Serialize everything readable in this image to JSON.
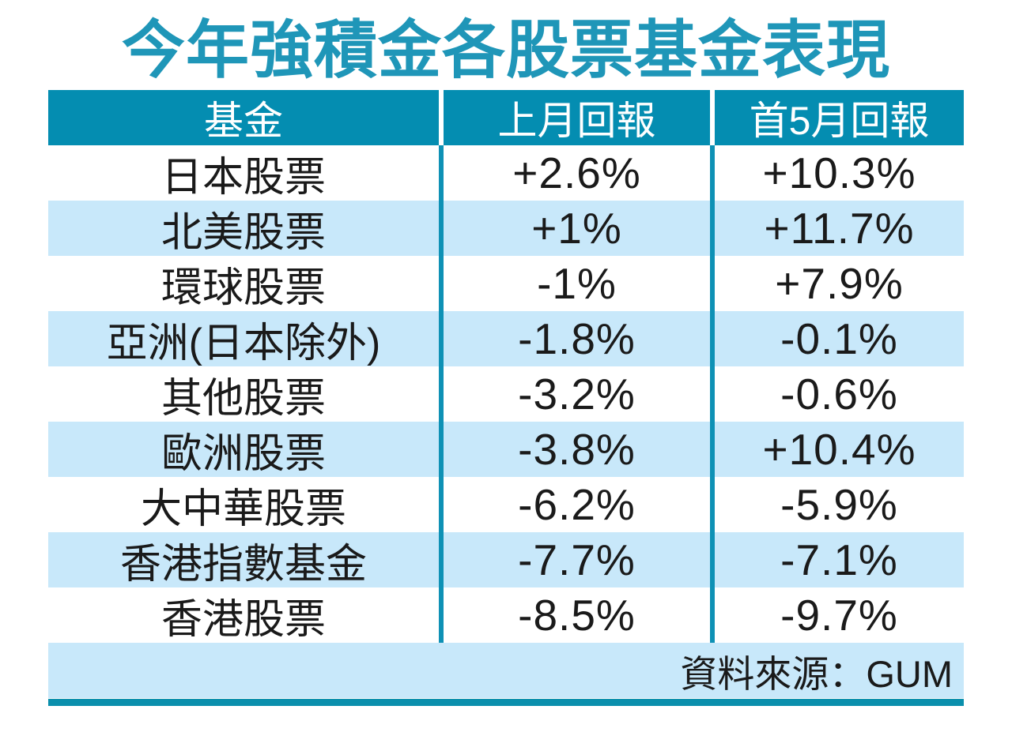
{
  "title": "今年強積金各股票基金表現",
  "source_note": "資料來源：GUM",
  "colors": {
    "title_text": "#1f96b8",
    "header_bg": "#048db1",
    "header_text": "#ffffff",
    "divider_teal": "#0e91b5",
    "alt_row_bg": "#c8e8fa",
    "bottom_bar": "#0a8fac",
    "body_text": "#1a1a1a"
  },
  "chart_data": {
    "type": "table",
    "title": "今年強積金各股票基金表現",
    "columns": [
      "基金",
      "上月回報",
      "首5月回報"
    ],
    "rows": [
      [
        "日本股票",
        "+2.6%",
        "+10.3%"
      ],
      [
        "北美股票",
        "+1%",
        "+11.7%"
      ],
      [
        "環球股票",
        "-1%",
        "+7.9%"
      ],
      [
        "亞洲(日本除外)",
        "-1.8%",
        "-0.1%"
      ],
      [
        "其他股票",
        "-3.2%",
        "-0.6%"
      ],
      [
        "歐洲股票",
        "-3.8%",
        "+10.4%"
      ],
      [
        "大中華股票",
        "-6.2%",
        "-5.9%"
      ],
      [
        "香港指數基金",
        "-7.7%",
        "-7.1%"
      ],
      [
        "香港股票",
        "-8.5%",
        "-9.7%"
      ]
    ],
    "source": "資料來源：GUM",
    "layout_hints": {
      "row_striping": "white / light-blue alternating starting with white",
      "value_alignment": "center",
      "source_alignment": "right"
    }
  }
}
